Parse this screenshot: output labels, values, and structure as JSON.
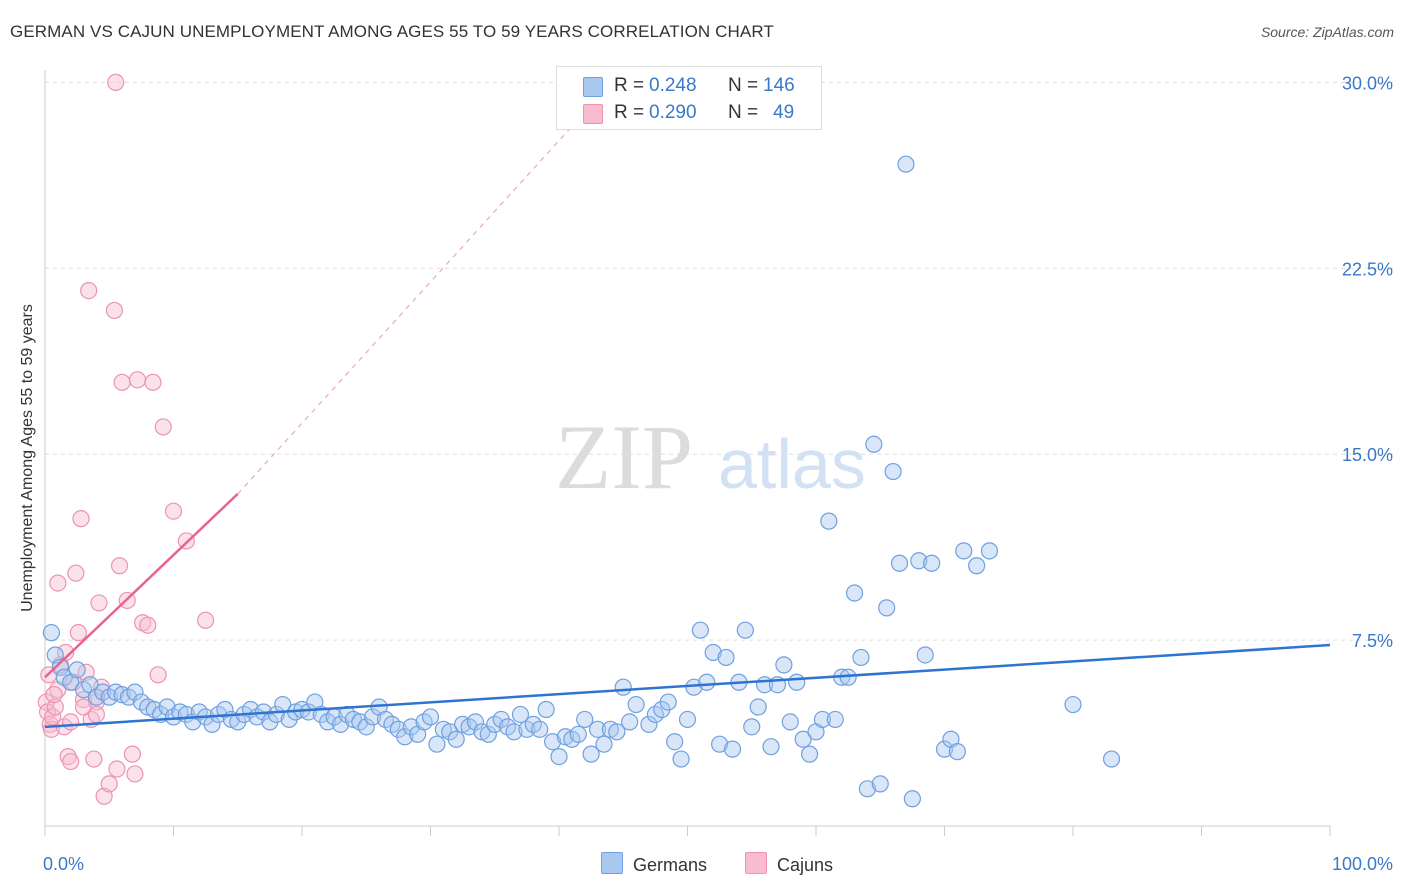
{
  "header": {
    "title": "GERMAN VS CAJUN UNEMPLOYMENT AMONG AGES 55 TO 59 YEARS CORRELATION CHART",
    "source": "Source: ZipAtlas.com"
  },
  "watermark": {
    "zip": "ZIP",
    "atlas": "atlas"
  },
  "legend": {
    "germans": {
      "r_label": "R =",
      "r_value": "0.248",
      "n_label": "N =",
      "n_value": "146",
      "name": "Germans"
    },
    "cajuns": {
      "r_label": "R =",
      "r_value": "0.290",
      "n_label": "N =",
      "n_value": "49",
      "name": "Cajuns"
    }
  },
  "colors": {
    "germans_fill": "#a9c8f0",
    "germans_stroke": "#6fa0e0",
    "germans_line": "#2f74d0",
    "cajuns_fill": "#f7bcd0",
    "cajuns_stroke": "#ee93b0",
    "cajuns_line": "#e8638f",
    "tick_label": "#3a78c9",
    "grid": "#dddddd"
  },
  "chart_data": {
    "type": "scatter",
    "title": "GERMAN VS CAJUN UNEMPLOYMENT AMONG AGES 55 TO 59 YEARS CORRELATION CHART",
    "xlabel": "",
    "ylabel": "Unemployment Among Ages 55 to 59 years",
    "xlim": [
      0,
      100
    ],
    "ylim": [
      0,
      30.5
    ],
    "x_tick_labels": [
      "0.0%",
      "100.0%"
    ],
    "y_ticks": [
      7.5,
      15.0,
      22.5,
      30.0
    ],
    "y_tick_labels": [
      "7.5%",
      "15.0%",
      "22.5%",
      "30.0%"
    ],
    "grid": true,
    "legend_position": "top-center",
    "series": [
      {
        "name": "Germans",
        "trend": {
          "x0": 0,
          "y0": 4.0,
          "x1": 100,
          "y1": 7.3
        },
        "points": [
          [
            0.5,
            7.8
          ],
          [
            0.8,
            6.9
          ],
          [
            1.2,
            6.4
          ],
          [
            1.5,
            6.0
          ],
          [
            2.0,
            5.8
          ],
          [
            2.5,
            6.3
          ],
          [
            3.0,
            5.5
          ],
          [
            3.5,
            5.7
          ],
          [
            4.0,
            5.2
          ],
          [
            4.5,
            5.4
          ],
          [
            5.0,
            5.2
          ],
          [
            5.5,
            5.4
          ],
          [
            6.0,
            5.3
          ],
          [
            6.5,
            5.2
          ],
          [
            7.0,
            5.4
          ],
          [
            7.5,
            5.0
          ],
          [
            8.0,
            4.8
          ],
          [
            8.5,
            4.7
          ],
          [
            9.0,
            4.5
          ],
          [
            9.5,
            4.8
          ],
          [
            10.0,
            4.4
          ],
          [
            10.5,
            4.6
          ],
          [
            11.0,
            4.5
          ],
          [
            11.5,
            4.2
          ],
          [
            12.0,
            4.6
          ],
          [
            12.5,
            4.4
          ],
          [
            13.0,
            4.1
          ],
          [
            13.5,
            4.5
          ],
          [
            14.0,
            4.7
          ],
          [
            14.5,
            4.3
          ],
          [
            15.0,
            4.2
          ],
          [
            15.5,
            4.5
          ],
          [
            16.0,
            4.7
          ],
          [
            16.5,
            4.4
          ],
          [
            17.0,
            4.6
          ],
          [
            17.5,
            4.2
          ],
          [
            18.0,
            4.5
          ],
          [
            18.5,
            4.9
          ],
          [
            19.0,
            4.3
          ],
          [
            19.5,
            4.6
          ],
          [
            20.0,
            4.7
          ],
          [
            20.5,
            4.6
          ],
          [
            21.0,
            5.0
          ],
          [
            21.5,
            4.5
          ],
          [
            22.0,
            4.2
          ],
          [
            22.5,
            4.4
          ],
          [
            23.0,
            4.1
          ],
          [
            23.5,
            4.5
          ],
          [
            24.0,
            4.3
          ],
          [
            24.5,
            4.2
          ],
          [
            25.0,
            4.0
          ],
          [
            25.5,
            4.4
          ],
          [
            26.0,
            4.8
          ],
          [
            26.5,
            4.3
          ],
          [
            27.0,
            4.1
          ],
          [
            27.5,
            3.9
          ],
          [
            28.0,
            3.6
          ],
          [
            28.5,
            4.0
          ],
          [
            29.0,
            3.7
          ],
          [
            29.5,
            4.2
          ],
          [
            30.0,
            4.4
          ],
          [
            30.5,
            3.3
          ],
          [
            31.0,
            3.9
          ],
          [
            31.5,
            3.8
          ],
          [
            32.0,
            3.5
          ],
          [
            32.5,
            4.1
          ],
          [
            33.0,
            4.0
          ],
          [
            33.5,
            4.2
          ],
          [
            34.0,
            3.8
          ],
          [
            34.5,
            3.7
          ],
          [
            35.0,
            4.1
          ],
          [
            35.5,
            4.3
          ],
          [
            36.0,
            4.0
          ],
          [
            36.5,
            3.8
          ],
          [
            37.0,
            4.5
          ],
          [
            37.5,
            3.9
          ],
          [
            38.0,
            4.1
          ],
          [
            38.5,
            3.9
          ],
          [
            39.0,
            4.7
          ],
          [
            39.5,
            3.4
          ],
          [
            40.0,
            2.8
          ],
          [
            40.5,
            3.6
          ],
          [
            41.0,
            3.5
          ],
          [
            41.5,
            3.7
          ],
          [
            42.0,
            4.3
          ],
          [
            42.5,
            2.9
          ],
          [
            43.0,
            3.9
          ],
          [
            43.5,
            3.3
          ],
          [
            44.0,
            3.9
          ],
          [
            44.5,
            3.8
          ],
          [
            45.0,
            5.6
          ],
          [
            45.5,
            4.2
          ],
          [
            46.0,
            4.9
          ],
          [
            47.0,
            4.1
          ],
          [
            47.5,
            4.5
          ],
          [
            48.0,
            4.7
          ],
          [
            48.5,
            5.0
          ],
          [
            49.0,
            3.4
          ],
          [
            49.5,
            2.7
          ],
          [
            50.0,
            4.3
          ],
          [
            50.5,
            5.6
          ],
          [
            51.0,
            7.9
          ],
          [
            51.5,
            5.8
          ],
          [
            52.0,
            7.0
          ],
          [
            52.5,
            3.3
          ],
          [
            53.0,
            6.8
          ],
          [
            53.5,
            3.1
          ],
          [
            54.0,
            5.8
          ],
          [
            54.5,
            7.9
          ],
          [
            55.0,
            4.0
          ],
          [
            55.5,
            4.8
          ],
          [
            56.0,
            5.7
          ],
          [
            56.5,
            3.2
          ],
          [
            57.0,
            5.7
          ],
          [
            57.5,
            6.5
          ],
          [
            58.0,
            4.2
          ],
          [
            58.5,
            5.8
          ],
          [
            59.0,
            3.5
          ],
          [
            59.5,
            2.9
          ],
          [
            60.0,
            3.8
          ],
          [
            60.5,
            4.3
          ],
          [
            61.0,
            12.3
          ],
          [
            61.5,
            4.3
          ],
          [
            62.0,
            6.0
          ],
          [
            62.5,
            6.0
          ],
          [
            63.0,
            9.4
          ],
          [
            63.5,
            6.8
          ],
          [
            64.0,
            1.5
          ],
          [
            64.5,
            15.4
          ],
          [
            65.0,
            1.7
          ],
          [
            65.5,
            8.8
          ],
          [
            66.0,
            14.3
          ],
          [
            66.5,
            10.6
          ],
          [
            67.0,
            26.7
          ],
          [
            67.5,
            1.1
          ],
          [
            68.0,
            10.7
          ],
          [
            68.5,
            6.9
          ],
          [
            69.0,
            10.6
          ],
          [
            70.0,
            3.1
          ],
          [
            70.5,
            3.5
          ],
          [
            71.0,
            3.0
          ],
          [
            71.5,
            11.1
          ],
          [
            72.5,
            10.5
          ],
          [
            73.5,
            11.1
          ],
          [
            80.0,
            4.9
          ],
          [
            83.0,
            2.7
          ]
        ]
      },
      {
        "name": "Cajuns",
        "trend": {
          "x0": 0,
          "y0": 6.0,
          "x1": 15,
          "y1": 13.4,
          "dashed_to": {
            "x": 45,
            "y": 30.5
          }
        },
        "points": [
          [
            0.1,
            5.0
          ],
          [
            0.2,
            4.6
          ],
          [
            0.4,
            4.1
          ],
          [
            0.5,
            3.9
          ],
          [
            0.6,
            4.4
          ],
          [
            0.8,
            4.8
          ],
          [
            1.0,
            5.5
          ],
          [
            1.0,
            9.8
          ],
          [
            1.5,
            4.0
          ],
          [
            1.8,
            2.8
          ],
          [
            2.0,
            2.6
          ],
          [
            2.2,
            5.8
          ],
          [
            2.4,
            10.2
          ],
          [
            2.6,
            7.8
          ],
          [
            2.8,
            12.4
          ],
          [
            3.0,
            5.1
          ],
          [
            3.2,
            6.2
          ],
          [
            3.4,
            21.6
          ],
          [
            3.6,
            4.3
          ],
          [
            3.8,
            2.7
          ],
          [
            4.0,
            5.0
          ],
          [
            4.2,
            9.0
          ],
          [
            4.4,
            5.6
          ],
          [
            4.6,
            1.2
          ],
          [
            5.0,
            1.7
          ],
          [
            5.4,
            20.8
          ],
          [
            5.6,
            2.3
          ],
          [
            5.8,
            10.5
          ],
          [
            6.0,
            17.9
          ],
          [
            6.4,
            9.1
          ],
          [
            6.8,
            2.9
          ],
          [
            7.0,
            2.1
          ],
          [
            7.2,
            18.0
          ],
          [
            7.6,
            8.2
          ],
          [
            8.0,
            8.1
          ],
          [
            8.4,
            17.9
          ],
          [
            8.8,
            6.1
          ],
          [
            9.2,
            16.1
          ],
          [
            10.0,
            12.7
          ],
          [
            11.0,
            11.5
          ],
          [
            12.5,
            8.3
          ],
          [
            0.3,
            6.1
          ],
          [
            1.2,
            6.5
          ],
          [
            2.0,
            4.2
          ],
          [
            3.0,
            4.8
          ],
          [
            4.0,
            4.5
          ],
          [
            5.5,
            30.0
          ],
          [
            0.7,
            5.3
          ],
          [
            1.6,
            7.0
          ]
        ]
      }
    ]
  }
}
